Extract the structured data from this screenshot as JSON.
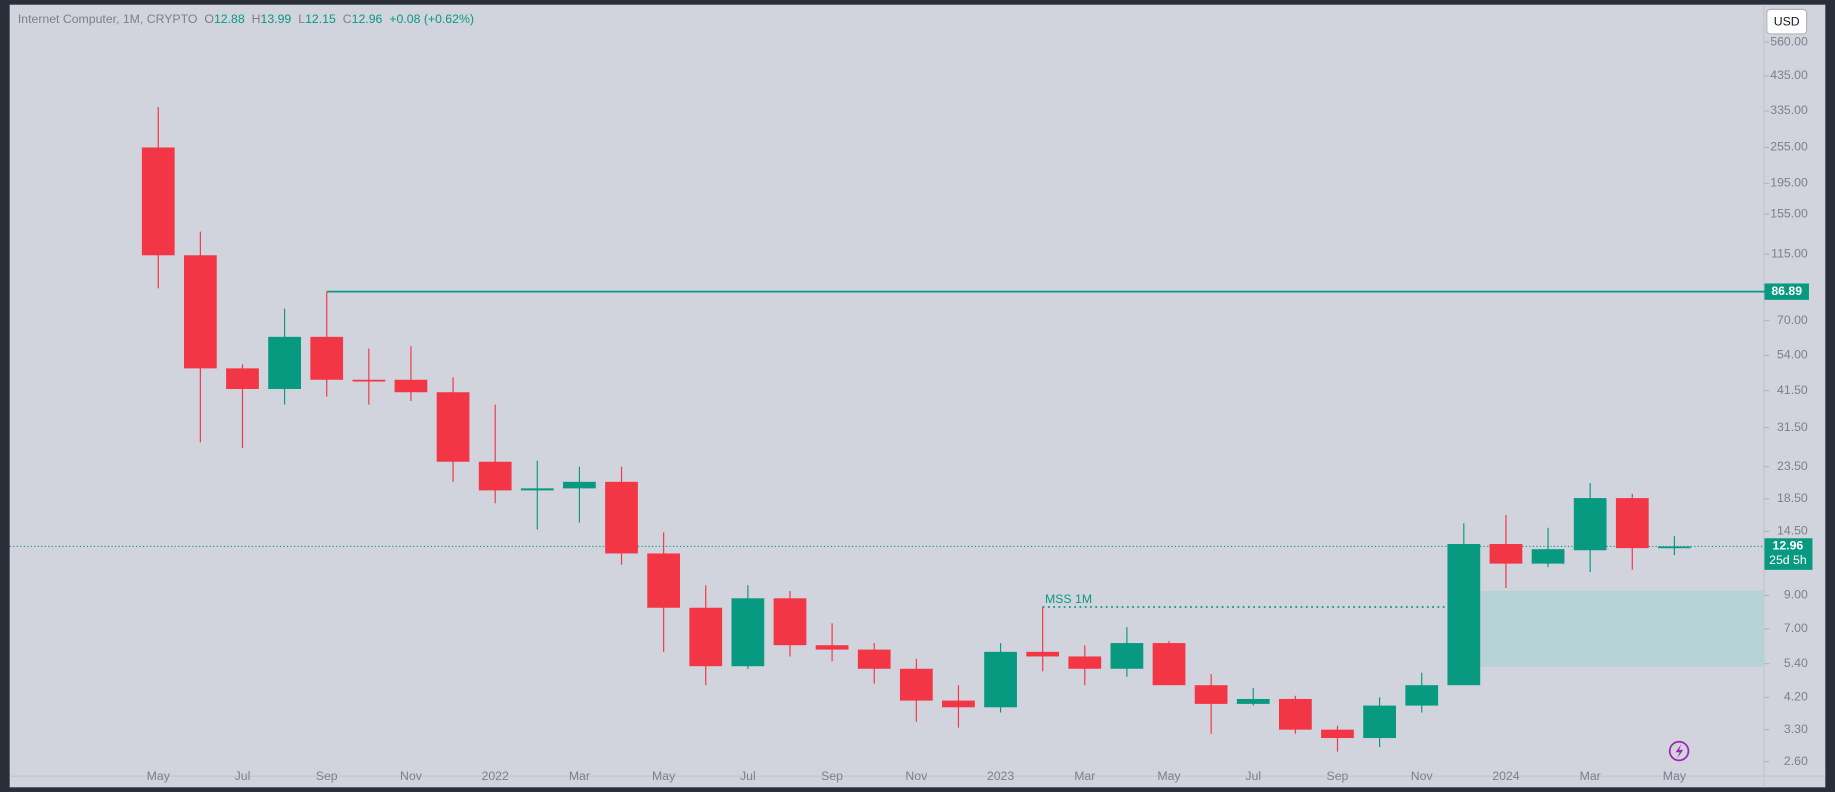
{
  "header": {
    "symbol": "Internet Computer, 1M, CRYPTO",
    "o": "O",
    "h": "H",
    "l": "L",
    "c": "C",
    "change": "+0.08 (+0.62%)",
    "currency": "USD",
    "countdown": "25d 5h"
  },
  "chart_data": {
    "type": "candlestick",
    "log_scale": true,
    "up_color": "#089981",
    "down_color": "#f23645",
    "categories": [
      "May",
      null,
      "Jul",
      null,
      "Sep",
      null,
      "Nov",
      null,
      "2022",
      null,
      "Mar",
      null,
      "May",
      null,
      "Jul",
      null,
      "Sep",
      null,
      "Nov",
      null,
      "2023",
      null,
      "Mar",
      null,
      "May",
      null,
      "Jul",
      null,
      "Sep",
      null,
      "Nov",
      null,
      "2024",
      null,
      "Mar",
      null,
      "May"
    ],
    "open": [
      255,
      114,
      49,
      42,
      62,
      45,
      45,
      41,
      24.4,
      19.7,
      20,
      21,
      12.3,
      8.2,
      5.3,
      8.8,
      6.2,
      6.0,
      5.2,
      4.1,
      3.9,
      5.9,
      5.7,
      5.2,
      6.3,
      4.6,
      4.0,
      4.15,
      3.3,
      3.1,
      3.95,
      4.6,
      13.2,
      11.4,
      12.6,
      18.6,
      12.88
    ],
    "high": [
      345,
      136,
      50.5,
      76.5,
      86.89,
      56.8,
      57.8,
      45.8,
      37.4,
      24.6,
      23.5,
      23.5,
      14.4,
      9.7,
      9.7,
      9.3,
      7.3,
      6.3,
      5.6,
      4.6,
      6.3,
      8.25,
      6.2,
      7.1,
      6.4,
      5.0,
      4.5,
      4.25,
      3.4,
      4.2,
      5.05,
      15.4,
      16.4,
      14.9,
      20.8,
      19.2,
      13.99
    ],
    "low": [
      89,
      28.2,
      27.0,
      37.4,
      39.7,
      37.4,
      38.4,
      21.0,
      17.9,
      14.7,
      15.5,
      11.3,
      5.9,
      4.6,
      5.2,
      5.7,
      5.5,
      4.65,
      3.5,
      3.35,
      3.75,
      5.1,
      4.6,
      4.9,
      4.6,
      3.2,
      3.95,
      3.2,
      2.8,
      2.9,
      3.75,
      4.6,
      9.5,
      11.1,
      10.7,
      10.9,
      12.15
    ],
    "close": [
      114,
      49,
      42,
      62,
      45,
      44.5,
      41,
      24.4,
      19.7,
      20,
      21,
      12.3,
      8.2,
      5.3,
      8.8,
      6.2,
      6.0,
      5.2,
      4.1,
      3.9,
      5.9,
      5.7,
      5.2,
      6.3,
      4.6,
      4.0,
      4.15,
      3.3,
      3.1,
      3.95,
      4.6,
      13.2,
      11.4,
      12.7,
      18.6,
      12.8,
      12.96
    ],
    "ylim": [
      2.6,
      560
    ],
    "yticks": [
      {
        "value": 2.6,
        "label": "2.60"
      },
      {
        "value": 3.3,
        "label": "3.30"
      },
      {
        "value": 4.2,
        "label": "4.20"
      },
      {
        "value": 5.4,
        "label": "5.40"
      },
      {
        "value": 7,
        "label": "7.00"
      },
      {
        "value": 9,
        "label": "9.00"
      },
      {
        "value": 14.5,
        "label": "14.50"
      },
      {
        "value": 18.5,
        "label": "18.50"
      },
      {
        "value": 23.5,
        "label": "23.50"
      },
      {
        "value": 31.5,
        "label": "31.50"
      },
      {
        "value": 41.5,
        "label": "41.50"
      },
      {
        "value": 54,
        "label": "54.00"
      },
      {
        "value": 70,
        "label": "70.00"
      },
      {
        "value": 115,
        "label": "115.00"
      },
      {
        "value": 155,
        "label": "155.00"
      },
      {
        "value": 195,
        "label": "195.00"
      },
      {
        "value": 255,
        "label": "255.00"
      },
      {
        "value": 335,
        "label": "335.00"
      },
      {
        "value": 435,
        "label": "435.00"
      },
      {
        "value": 560,
        "label": "560.00"
      }
    ],
    "levels": [
      {
        "value": 86.89,
        "color": "#089981"
      },
      {
        "value": 8.25,
        "label": "MSS 1M",
        "color": "#089981"
      }
    ],
    "zone": {
      "low": 5.28,
      "high": 9.3,
      "color": "#b4d2d3"
    }
  }
}
